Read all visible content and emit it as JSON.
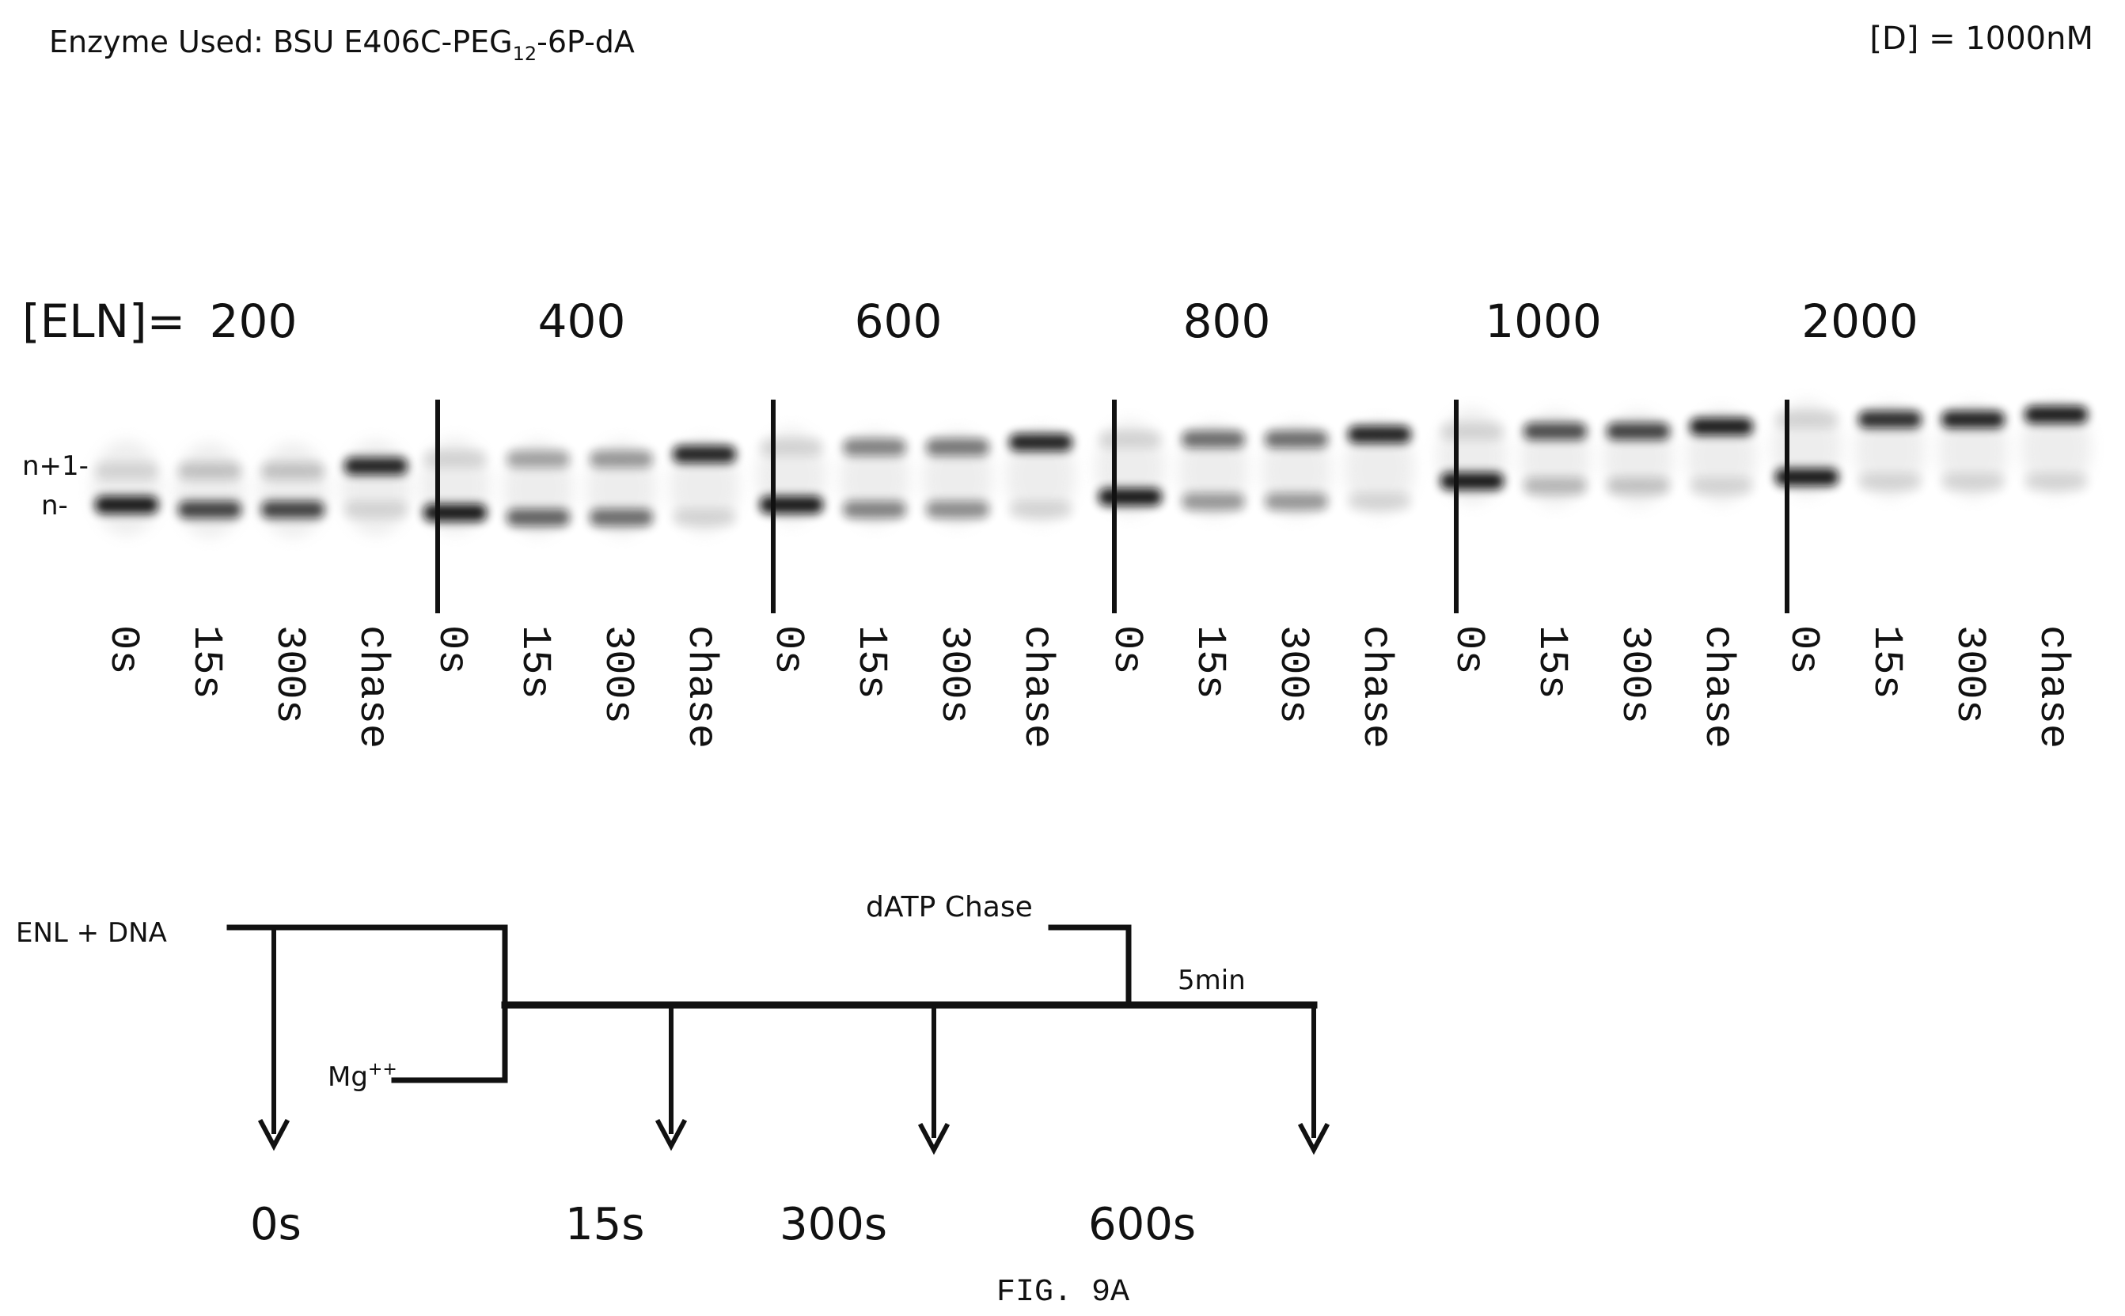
{
  "header": {
    "enzyme_prefix": "Enzyme Used: BSU E406C-PEG",
    "enzyme_sub": "12",
    "enzyme_suffix": "-6P-dA",
    "dna_conc": "[D] = 1000nM"
  },
  "gel": {
    "eln_label": "[ELN]=",
    "band_labels": {
      "upper": "n+1-",
      "lower": "n-"
    },
    "groups": [
      {
        "conc": "200",
        "lanes": [
          "0s",
          "15s",
          "300s",
          "chase"
        ],
        "product_frac": [
          0.0,
          0.2,
          0.2,
          0.95
        ]
      },
      {
        "conc": "400",
        "lanes": [
          "0s",
          "15s",
          "300s",
          "chase"
        ],
        "product_frac": [
          0.0,
          0.35,
          0.4,
          0.95
        ]
      },
      {
        "conc": "600",
        "lanes": [
          "0s",
          "15s",
          "300s",
          "chase"
        ],
        "product_frac": [
          0.0,
          0.5,
          0.55,
          0.95
        ]
      },
      {
        "conc": "800",
        "lanes": [
          "0s",
          "15s",
          "300s",
          "chase"
        ],
        "product_frac": [
          0.0,
          0.6,
          0.6,
          0.95
        ]
      },
      {
        "conc": "1000",
        "lanes": [
          "0s",
          "15s",
          "300s",
          "chase"
        ],
        "product_frac": [
          0.0,
          0.75,
          0.8,
          0.98
        ]
      },
      {
        "conc": "2000",
        "lanes": [
          "0s",
          "15s",
          "300s",
          "chase"
        ],
        "product_frac": [
          0.0,
          0.9,
          0.95,
          0.98
        ]
      }
    ]
  },
  "scheme": {
    "enl_dna": "ENL + DNA",
    "mg": "Mg",
    "mg_sup": "++",
    "datp_chase": "dATP Chase",
    "five_min": "5min",
    "timepoints": [
      "0s",
      "15s",
      "300s",
      "600s"
    ]
  },
  "caption": "FIG. 9A"
}
